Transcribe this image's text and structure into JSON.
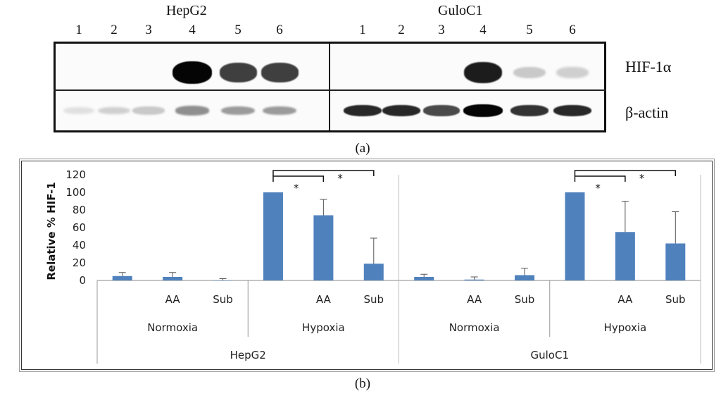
{
  "panel_a": {
    "label": "(a)",
    "cell_lines": [
      "HepG2",
      "GuloC1"
    ],
    "lanes": [
      "1",
      "2",
      "3",
      "4",
      "5",
      "6"
    ],
    "row_labels": [
      "HIF-1α",
      "β-actin"
    ],
    "band_intensity": {
      "HepG2": {
        "HIF-1α": [
          0.0,
          0.0,
          0.0,
          1.0,
          0.75,
          0.75
        ],
        "β-actin": [
          0.05,
          0.12,
          0.15,
          0.4,
          0.35,
          0.35
        ]
      },
      "GuloC1": {
        "HIF-1α": [
          0.0,
          0.0,
          0.0,
          0.9,
          0.15,
          0.12
        ],
        "β-actin": [
          0.85,
          0.85,
          0.7,
          1.0,
          0.8,
          0.85
        ]
      }
    }
  },
  "panel_b": {
    "label": "(b)"
  },
  "chart_data": {
    "type": "bar",
    "ylabel": "Relative % HIF-1",
    "ylim": [
      0,
      120
    ],
    "yticks": [
      "0",
      "20",
      "40",
      "60",
      "80",
      "100",
      "120"
    ],
    "groups": [
      {
        "cell_line": "HepG2",
        "conditions": [
          {
            "name": "Normoxia",
            "bars": [
              {
                "label": "",
                "value": 5,
                "error": 4
              },
              {
                "label": "AA",
                "value": 4,
                "error": 5
              },
              {
                "label": "Sub",
                "value": 0,
                "error": 2
              }
            ]
          },
          {
            "name": "Hypoxia",
            "bars": [
              {
                "label": "",
                "value": 100,
                "error": 0
              },
              {
                "label": "AA",
                "value": 74,
                "error": 18
              },
              {
                "label": "Sub",
                "value": 19,
                "error": 29
              }
            ]
          }
        ]
      },
      {
        "cell_line": "GuloC1",
        "conditions": [
          {
            "name": "Normoxia",
            "bars": [
              {
                "label": "",
                "value": 4,
                "error": 3
              },
              {
                "label": "AA",
                "value": 1,
                "error": 3
              },
              {
                "label": "Sub",
                "value": 6,
                "error": 8
              }
            ]
          },
          {
            "name": "Hypoxia",
            "bars": [
              {
                "label": "",
                "value": 100,
                "error": 0
              },
              {
                "label": "AA",
                "value": 55,
                "error": 35
              },
              {
                "label": "Sub",
                "value": 42,
                "error": 36
              }
            ]
          }
        ]
      }
    ],
    "significance_marker": "*",
    "bar_color": "#4f81bd",
    "grid": false
  }
}
